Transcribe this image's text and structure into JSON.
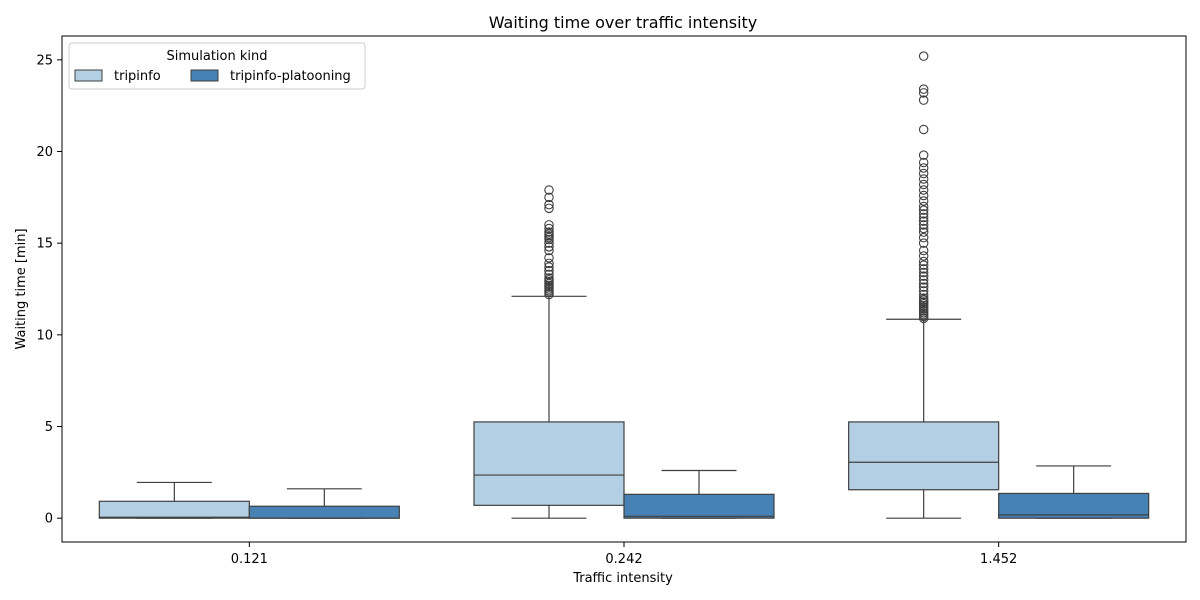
{
  "chart_data": {
    "type": "box",
    "title": "Waiting time over traffic intensity",
    "xlabel": "Traffic intensity",
    "ylabel": "Waiting time [min]",
    "ylim": [
      -1.3,
      26.3
    ],
    "yticks": [
      0,
      5,
      10,
      15,
      20,
      25
    ],
    "categories": [
      "0.121",
      "0.242",
      "1.452"
    ],
    "legend": {
      "title": "Simulation kind",
      "placement": "top-left",
      "columns": 2
    },
    "colors": {
      "tripinfo": "#b3cfe3",
      "tripinfo-platooning": "#4682b4",
      "edge": "#3f3f3f"
    },
    "series": [
      {
        "name": "tripinfo",
        "boxes": [
          {
            "whisker_low": 0,
            "q1": 0,
            "median": 0.05,
            "q3": 0.92,
            "whisker_high": 1.95,
            "outliers": []
          },
          {
            "whisker_low": 0,
            "q1": 0.7,
            "median": 2.35,
            "q3": 5.25,
            "whisker_high": 12.1,
            "outliers": [
              12.2,
              12.3,
              12.4,
              12.5,
              12.6,
              12.7,
              12.8,
              12.9,
              13.0,
              13.1,
              13.3,
              13.5,
              13.7,
              13.9,
              14.2,
              14.6,
              14.8,
              15.0,
              15.2,
              15.3,
              15.4,
              15.5,
              15.6,
              15.8,
              16.0,
              16.9,
              17.1,
              17.5,
              17.9
            ]
          },
          {
            "whisker_low": 0,
            "q1": 1.55,
            "median": 3.05,
            "q3": 5.25,
            "whisker_high": 10.85,
            "outliers": [
              10.9,
              11.0,
              11.1,
              11.2,
              11.3,
              11.4,
              11.5,
              11.6,
              11.7,
              11.8,
              11.9,
              12.0,
              12.2,
              12.4,
              12.6,
              12.8,
              13.0,
              13.2,
              13.4,
              13.6,
              13.8,
              14.0,
              14.3,
              14.6,
              15.0,
              15.3,
              15.6,
              15.8,
              16.0,
              16.2,
              16.4,
              16.6,
              16.8,
              17.0,
              17.3,
              17.6,
              17.9,
              18.2,
              18.5,
              18.8,
              19.1,
              19.4,
              19.8,
              21.2,
              22.8,
              23.2,
              23.4,
              25.2
            ]
          }
        ]
      },
      {
        "name": "tripinfo-platooning",
        "boxes": [
          {
            "whisker_low": 0,
            "q1": 0,
            "median": 0,
            "q3": 0.65,
            "whisker_high": 1.6,
            "outliers": []
          },
          {
            "whisker_low": 0,
            "q1": 0,
            "median": 0.1,
            "q3": 1.3,
            "whisker_high": 2.6,
            "outliers": []
          },
          {
            "whisker_low": 0,
            "q1": 0,
            "median": 0.18,
            "q3": 1.35,
            "whisker_high": 2.85,
            "outliers": []
          }
        ]
      }
    ]
  }
}
